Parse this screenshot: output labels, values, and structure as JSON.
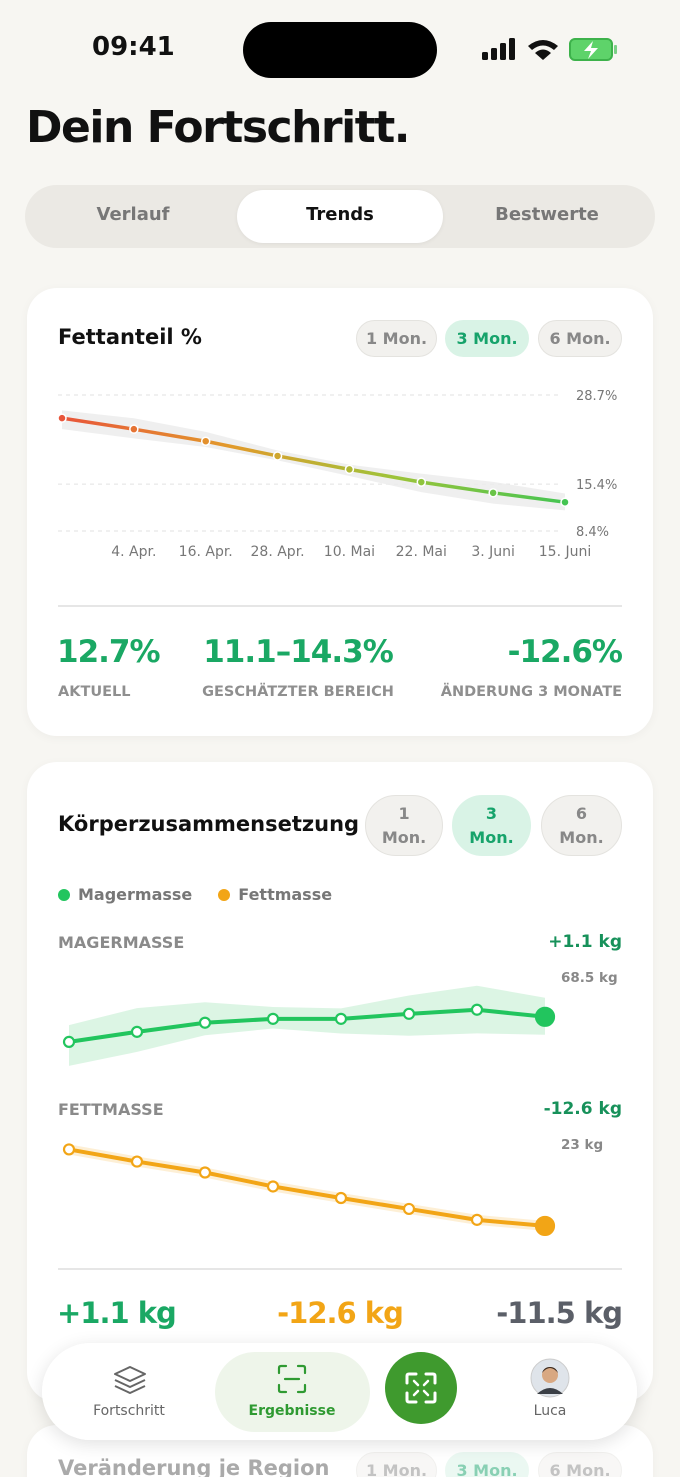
{
  "status_bar": {
    "time": "09:41"
  },
  "header": {
    "title": "Dein Fortschritt."
  },
  "tabs": [
    "Verlauf",
    "Trends",
    "Bestwerte"
  ],
  "fat_card": {
    "title": "Fettanteil %",
    "periods": [
      "1 Mon.",
      "3 Mon.",
      "6 Mon."
    ],
    "stats": [
      {
        "value": "12.7%",
        "label": "AKTUELL"
      },
      {
        "value": "11.1–14.3%",
        "label": "GESCHÄTZTER BEREICH"
      },
      {
        "value": "-12.6%",
        "label": "ÄNDERUNG 3 MONATE"
      }
    ]
  },
  "composition_card": {
    "title": "Körperzusammensetzung",
    "periods": [
      "1 Mon.",
      "3 Mon.",
      "6 Mon."
    ],
    "legend": [
      {
        "name": "Magermasse",
        "color": "#22c55e"
      },
      {
        "name": "Fettmasse",
        "color": "#f2a516"
      }
    ],
    "lean": {
      "label": "MAGERMASSE",
      "change": "+1.1 kg",
      "current": "68.5 kg"
    },
    "fat": {
      "label": "FETTMASSE",
      "change": "-12.6 kg",
      "current": "23 kg"
    },
    "summary": [
      "+1.1 kg",
      "-12.6 kg",
      "-11.5 kg"
    ]
  },
  "region_card": {
    "title": "Veränderung je Region",
    "periods": [
      "1 Mon.",
      "3 Mon.",
      "6 Mon."
    ]
  },
  "nav": [
    "Fortschritt",
    "Ergebnisse",
    "Luca"
  ],
  "chart_data": [
    {
      "type": "line",
      "categories": [
        null,
        "4. Apr.",
        "16. Apr.",
        "28. Apr.",
        "10. Mai",
        "22. Mai",
        "3. Juni",
        "15. Juni"
      ],
      "values": [
        25.25,
        23.6,
        21.8,
        19.6,
        17.6,
        15.7,
        14.1,
        12.7
      ],
      "colors": [
        "#e8553a",
        "#e29a2b",
        "#9cc43a",
        "#44c452"
      ],
      "band_color": "#ececec",
      "ylim": [
        8.4,
        28.7
      ],
      "yticks": [
        {
          "value": 28.7,
          "label": "28.7%"
        },
        {
          "value": 15.4,
          "label": "15.4%"
        },
        {
          "value": 8.4,
          "label": "8.4%"
        }
      ],
      "grid": true
    },
    {
      "type": "line",
      "values": [
        67.4,
        67.84,
        68.24,
        68.41,
        68.41,
        68.63,
        68.81,
        68.5
      ],
      "color": "#22c55e",
      "band_color": "#d6f3df",
      "ylim": [
        67,
        69.5
      ]
    },
    {
      "type": "line",
      "values": [
        35.6,
        33.6,
        31.8,
        29.5,
        27.6,
        25.8,
        24.0,
        23.0
      ],
      "color": "#f2a516",
      "glow": true,
      "ylim": [
        22,
        36
      ]
    }
  ]
}
